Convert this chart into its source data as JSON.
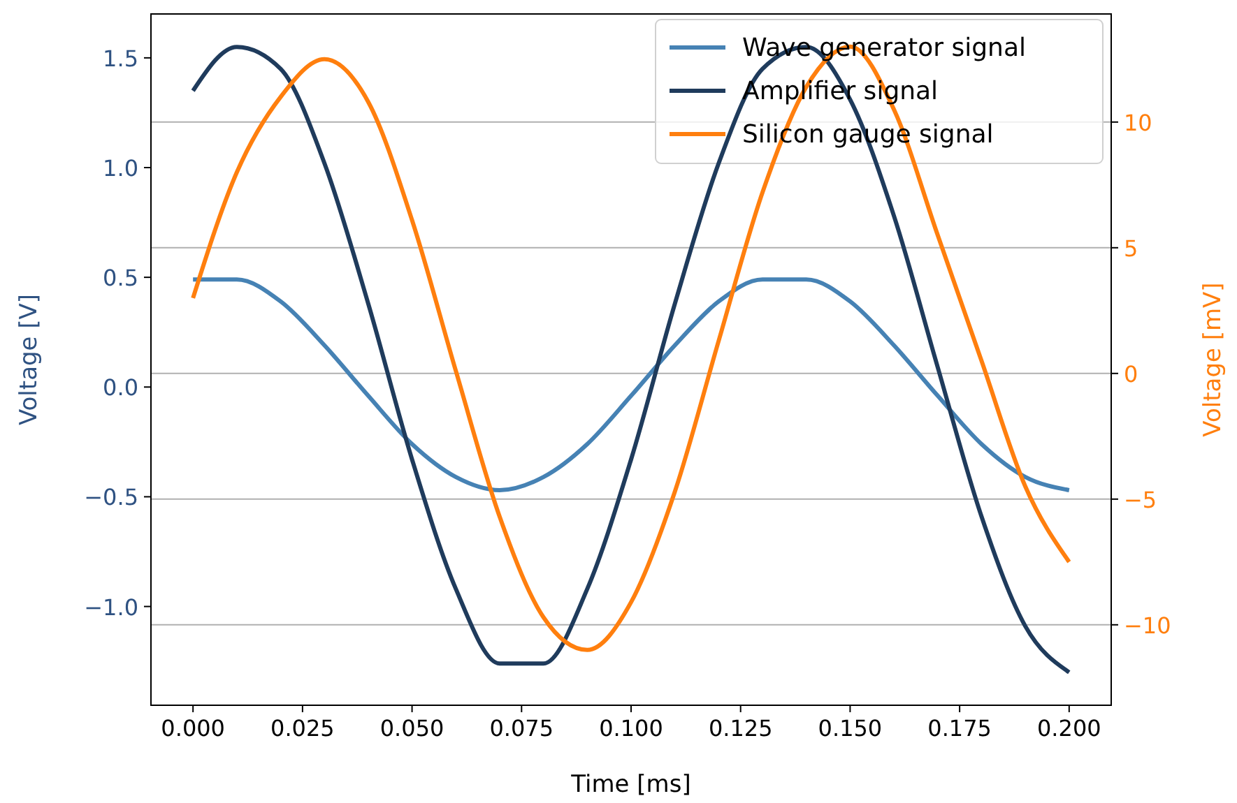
{
  "chart_data": {
    "type": "line",
    "xlabel": "Time [ms]",
    "ylabel": "Voltage [V]",
    "y2label": "Voltage [mV]",
    "x": [
      0,
      0.01,
      0.02,
      0.03,
      0.04,
      0.05,
      0.06,
      0.07,
      0.08,
      0.09,
      0.1,
      0.11,
      0.12,
      0.13,
      0.14,
      0.15,
      0.16,
      0.17,
      0.18,
      0.19,
      0.2
    ],
    "series": [
      {
        "name": "Wave generator signal",
        "color": "#4682b4",
        "values": [
          0.49,
          0.49,
          0.39,
          0.19,
          -0.04,
          -0.26,
          -0.41,
          -0.47,
          -0.41,
          -0.26,
          -0.04,
          0.19,
          0.39,
          0.49,
          0.49,
          0.39,
          0.19,
          -0.04,
          -0.26,
          -0.41,
          -0.47
        ]
      },
      {
        "name": "Amplifier signal",
        "color": "#1f3b5c",
        "values": [
          1.35,
          1.55,
          1.45,
          1.02,
          0.38,
          -0.33,
          -0.92,
          -1.26,
          -1.26,
          -0.92,
          -0.33,
          0.38,
          1.02,
          1.45,
          1.55,
          1.31,
          0.78,
          0.09,
          -0.59,
          -1.09,
          -1.3
        ]
      },
      {
        "name": "Silicon gauge signal",
        "color": "#ff7f0e",
        "axis": "y2",
        "values": [
          3,
          8,
          11,
          12.5,
          10.8,
          6.1,
          0.1,
          -5.7,
          -9.7,
          -11,
          -9.1,
          -4.7,
          1.3,
          7.2,
          11.4,
          13,
          10.5,
          5.5,
          0.5,
          -4.5,
          -7.5
        ]
      }
    ],
    "xlim": [
      -0.0096,
      0.2096
    ],
    "ylim": [
      -1.45,
      1.7
    ],
    "y2lim": [
      -13.2,
      14.3
    ],
    "xticks": [
      {
        "value": 0,
        "label": "0.000"
      },
      {
        "value": 0.025,
        "label": "0.025"
      },
      {
        "value": 0.05,
        "label": "0.050"
      },
      {
        "value": 0.075,
        "label": "0.075"
      },
      {
        "value": 0.1,
        "label": "0.100"
      },
      {
        "value": 0.125,
        "label": "0.125"
      },
      {
        "value": 0.15,
        "label": "0.150"
      },
      {
        "value": 0.175,
        "label": "0.175"
      },
      {
        "value": 0.2,
        "label": "0.200"
      }
    ],
    "yticks": [
      {
        "value": -1,
        "label": "−1.0"
      },
      {
        "value": -0.5,
        "label": "−0.5"
      },
      {
        "value": 0,
        "label": "0.0"
      },
      {
        "value": 0.5,
        "label": "0.5"
      },
      {
        "value": 1,
        "label": "1.0"
      },
      {
        "value": 1.5,
        "label": "1.5"
      }
    ],
    "y2ticks": [
      {
        "value": -10,
        "label": "−10"
      },
      {
        "value": -5,
        "label": "−5"
      },
      0,
      5,
      10
    ],
    "grid": "y2",
    "legend": "top right",
    "marker": "none",
    "line_style": "solid"
  }
}
